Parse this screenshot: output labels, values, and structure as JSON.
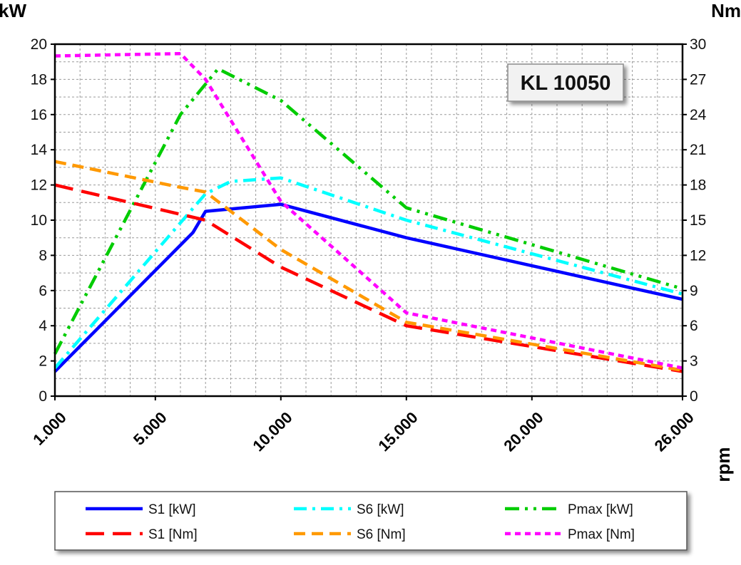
{
  "chart_data": {
    "type": "line",
    "title": "KL 10050",
    "xlabel": "rpm",
    "ylabel_left": "kW",
    "ylabel_right": "Nm",
    "xlim": [
      1000,
      26000
    ],
    "ylim_left": [
      0,
      20
    ],
    "ylim_right": [
      0,
      30
    ],
    "x_tick_labels": [
      "1.000",
      "5.000",
      "10.000",
      "15.000",
      "20.000",
      "26.000"
    ],
    "y_left_tick_labels": [
      "0",
      "2",
      "4",
      "6",
      "8",
      "10",
      "12",
      "14",
      "16",
      "18",
      "20"
    ],
    "y_right_tick_labels": [
      "0",
      "3",
      "6",
      "9",
      "12",
      "15",
      "18",
      "21",
      "24",
      "27",
      "30"
    ],
    "grid": true,
    "legend_position": "bottom",
    "series": [
      {
        "name": "S1 [kW]",
        "axis": "left",
        "color": "#0000ff",
        "style": "solid",
        "x": [
          1000,
          6500,
          7000,
          10000,
          15000,
          26000
        ],
        "y": [
          1.4,
          9.3,
          10.5,
          10.9,
          9.0,
          5.5
        ]
      },
      {
        "name": "S6 [kW]",
        "axis": "left",
        "color": "#00ffff",
        "style": "dashdot",
        "x": [
          1000,
          7000,
          8000,
          10000,
          15000,
          26000
        ],
        "y": [
          1.6,
          11.5,
          12.2,
          12.4,
          10.0,
          5.8
        ]
      },
      {
        "name": "Pmax [kW]",
        "axis": "left",
        "color": "#00cc00",
        "style": "dashdotdot",
        "x": [
          1000,
          6000,
          7500,
          10000,
          15000,
          26000
        ],
        "y": [
          2.4,
          16.0,
          18.6,
          16.8,
          10.7,
          6.1
        ]
      },
      {
        "name": "S1 [Nm]",
        "axis": "right",
        "color": "#ff0000",
        "style": "longdash",
        "x": [
          1000,
          7000,
          10000,
          15000,
          26000
        ],
        "y": [
          18.0,
          15.0,
          11.0,
          6.0,
          2.1
        ]
      },
      {
        "name": "S6 [Nm]",
        "axis": "right",
        "color": "#ff9900",
        "style": "dash",
        "x": [
          1000,
          6000,
          7000,
          10000,
          15000,
          26000
        ],
        "y": [
          20.0,
          17.8,
          17.4,
          12.5,
          6.3,
          2.2
        ]
      },
      {
        "name": "Pmax [Nm]",
        "axis": "right",
        "color": "#ff00ff",
        "style": "shortdash",
        "x": [
          1000,
          6000,
          7000,
          10000,
          15000,
          26000
        ],
        "y": [
          29.0,
          29.2,
          27.0,
          16.6,
          7.1,
          2.4
        ]
      }
    ]
  }
}
